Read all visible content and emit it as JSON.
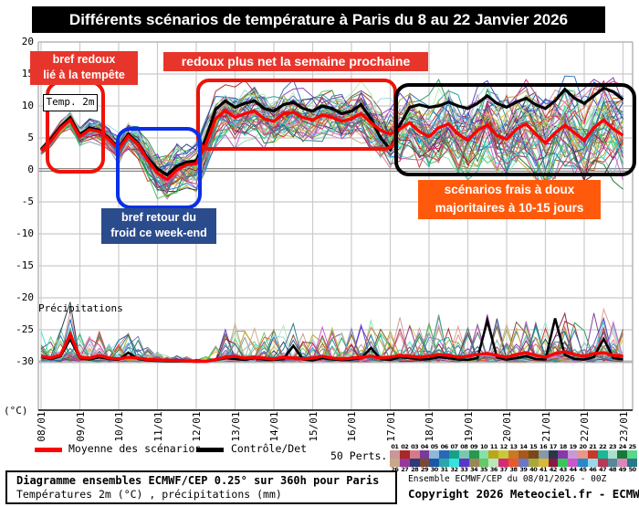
{
  "title": "Différents scénarios de température à Paris du 8 au 22 Janvier 2026",
  "annotations": {
    "storm_redoux": {
      "line1": "bref redoux",
      "line2": "lié à la tempête"
    },
    "next_week_redoux": "redoux plus net la semaine prochaine",
    "weekend_cold": {
      "line1": "bref retour du",
      "line2": "froid ce week-end"
    },
    "mild_majority": {
      "line1": "scénarios frais à doux",
      "line2": "majoritaires à 10-15 jours"
    },
    "temp_label": "Temp. 2m",
    "precip_label": "Précipitations"
  },
  "legend": {
    "mean_label": "Moyenne des scénarios",
    "control_label": "Contrôle/Det",
    "perts_label": "50 Perts.",
    "perts_count": 50
  },
  "footer": {
    "left_title": "Diagramme ensembles ECMWF/CEP 0.25° sur 360h pour Paris",
    "left_subtitle": "Températures 2m (°C) , précipitations (mm)",
    "right_line1": "Ensemble ECMWF/CEP du 08/01/2026 - 00Z",
    "right_line2": "Copyright 2026 Meteociel.fr - ECMWF"
  },
  "axis": {
    "y_unit": "(°C)",
    "y_ticks": [
      20,
      15,
      10,
      5,
      0,
      -5,
      -10,
      -15,
      -20,
      -25,
      -30
    ],
    "x_labels": [
      "08/01",
      "09/01",
      "10/01",
      "11/01",
      "12/01",
      "13/01",
      "14/01",
      "15/01",
      "16/01",
      "17/01",
      "18/01",
      "19/01",
      "20/01",
      "21/01",
      "22/01",
      "23/01"
    ]
  },
  "colors": {
    "mean": "#ff0000",
    "control": "#000000",
    "red_annotation": "#e8352b",
    "red_outline": "#ee1208",
    "blue_fill": "#2b4c8c",
    "blue_outline": "#0a2fe8",
    "orange_fill": "#ff5a0c",
    "grid": "#cbcbcb",
    "border": "#b5b5b5",
    "zero_line": "#8a8a8a",
    "baseline": "#b8b8b8",
    "palette": [
      "#c89898",
      "#a82828",
      "#d87888",
      "#7a3a98",
      "#8fb8d8",
      "#2868b8",
      "#18a088",
      "#78c8b0",
      "#289850",
      "#88e0a8",
      "#b8a818",
      "#c8c838",
      "#c87828",
      "#a85818",
      "#784818",
      "#8898a8",
      "#283848",
      "#8838a8",
      "#c898d8",
      "#e89888",
      "#c83828",
      "#18b898",
      "#a8e0d0",
      "#187838",
      "#58d888",
      "#c8a888",
      "#983898",
      "#303878",
      "#784838",
      "#1858a8",
      "#28a8a8",
      "#38e0e0",
      "#5838c8",
      "#988858",
      "#68c868",
      "#b8e8b8",
      "#d82878",
      "#e85828",
      "#6878c8",
      "#a8a838",
      "#d8b838",
      "#881848",
      "#38c858",
      "#c858c8",
      "#2888c8",
      "#98d8e8",
      "#b83858",
      "#588898",
      "#d888b8",
      "#287888"
    ]
  },
  "chart_data": {
    "type": "line",
    "title": "Différents scénarios de température à Paris du 8 au 22 Janvier 2026",
    "x_start_date": "08/01",
    "x_end_date": "23/01",
    "x_hours_step": 6,
    "x_total_hours": 360,
    "temp_ylim": [
      -30,
      20
    ],
    "grid": true,
    "series": [
      {
        "name": "Moyenne des scénarios",
        "color": "#ff0000",
        "values": [
          3.0,
          4.5,
          6.5,
          7.8,
          5.2,
          6.3,
          6.0,
          4.8,
          3.2,
          5.3,
          4.0,
          1.5,
          -0.5,
          -1.5,
          0.0,
          0.8,
          1.0,
          4.0,
          8.0,
          9.3,
          8.2,
          8.8,
          9.2,
          8.0,
          7.6,
          8.8,
          9.0,
          8.2,
          7.8,
          8.6,
          8.2,
          7.6,
          8.0,
          8.8,
          7.4,
          6.2,
          5.6,
          6.4,
          7.4,
          6.0,
          5.2,
          6.6,
          7.2,
          5.6,
          4.6,
          6.2,
          7.0,
          5.4,
          4.8,
          6.4,
          7.2,
          5.6,
          4.2,
          5.8,
          7.0,
          5.8,
          4.6,
          6.6,
          7.8,
          6.4,
          5.4
        ]
      },
      {
        "name": "Contrôle/Det",
        "color": "#000000",
        "values": [
          3.2,
          4.8,
          6.8,
          8.2,
          5.5,
          6.6,
          6.2,
          5.0,
          3.4,
          5.6,
          4.2,
          1.8,
          0.2,
          -0.8,
          0.6,
          1.2,
          1.4,
          5.0,
          9.5,
          10.8,
          9.8,
          10.4,
          10.8,
          9.6,
          9.2,
          10.2,
          10.6,
          9.6,
          9.2,
          10.0,
          9.6,
          8.8,
          9.2,
          10.2,
          8.0,
          5.0,
          3.2,
          7.0,
          9.8,
          10.2,
          9.8,
          10.0,
          10.6,
          10.0,
          9.6,
          10.4,
          11.6,
          10.4,
          9.8,
          10.6,
          11.2,
          10.2,
          9.6,
          10.8,
          12.6,
          11.2,
          10.4,
          11.6,
          12.8,
          12.2,
          11.0
        ]
      }
    ],
    "precip_series": [
      {
        "name": "Moyenne des scénarios",
        "color": "#ff0000",
        "values": [
          1.2,
          0.8,
          1.5,
          6.0,
          1.0,
          0.8,
          1.4,
          0.8,
          0.6,
          1.0,
          0.8,
          0.5,
          0.4,
          0.3,
          0.3,
          0.2,
          0.1,
          0.1,
          0.5,
          1.0,
          1.2,
          0.8,
          1.0,
          0.8,
          0.6,
          1.0,
          0.8,
          0.6,
          0.8,
          1.2,
          0.8,
          0.6,
          0.8,
          1.0,
          1.2,
          0.8,
          1.0,
          1.4,
          1.2,
          1.0,
          1.2,
          1.6,
          1.4,
          1.0,
          1.2,
          1.6,
          1.8,
          1.4,
          1.0,
          1.6,
          2.0,
          1.4,
          1.0,
          1.8,
          2.2,
          1.6,
          1.2,
          1.8,
          2.0,
          1.4,
          1.2
        ]
      },
      {
        "name": "Contrôle/Det",
        "color": "#000000",
        "values": [
          1.0,
          0.6,
          1.2,
          5.0,
          0.8,
          0.5,
          1.0,
          0.6,
          0.4,
          2.0,
          0.6,
          0.3,
          0.2,
          0.1,
          0.1,
          0.1,
          0.0,
          0.1,
          0.4,
          0.8,
          0.6,
          0.4,
          0.8,
          0.5,
          0.4,
          0.6,
          3.5,
          0.5,
          0.3,
          0.8,
          0.5,
          0.4,
          0.5,
          0.8,
          3.0,
          0.6,
          0.4,
          1.0,
          0.8,
          0.5,
          0.6,
          1.0,
          0.8,
          0.5,
          0.4,
          0.8,
          9.0,
          1.0,
          0.5,
          0.8,
          1.2,
          0.6,
          0.5,
          9.5,
          1.5,
          0.6,
          0.5,
          1.0,
          5.0,
          0.8,
          0.5
        ]
      }
    ],
    "ensemble": {
      "members": 50,
      "temp_spread": [
        0.5,
        0.7,
        0.8,
        1.0,
        1.1,
        1.2,
        1.3,
        1.4,
        1.6,
        1.8,
        2.0,
        2.4,
        2.8,
        3.2,
        3.0,
        2.8,
        3.0,
        3.2,
        3.0,
        2.8,
        3.0,
        3.0,
        3.0,
        3.0,
        3.1,
        3.1,
        3.2,
        3.2,
        3.2,
        3.2,
        3.3,
        3.3,
        3.4,
        3.5,
        3.7,
        3.9,
        4.1,
        4.3,
        4.4,
        4.5,
        4.6,
        4.7,
        4.8,
        4.9,
        5.0,
        5.1,
        5.2,
        5.2,
        5.3,
        5.3,
        5.4,
        5.4,
        5.5,
        5.5,
        5.5,
        5.5,
        5.5,
        5.5,
        5.5,
        5.5,
        5.5
      ],
      "precip_wetness": [
        0.5,
        0.4,
        0.6,
        1.0,
        0.5,
        0.4,
        0.5,
        0.4,
        0.35,
        0.45,
        0.4,
        0.25,
        0.15,
        0.1,
        0.1,
        0.08,
        0.05,
        0.1,
        0.3,
        0.5,
        0.6,
        0.5,
        0.6,
        0.5,
        0.5,
        0.6,
        0.6,
        0.5,
        0.55,
        0.6,
        0.55,
        0.5,
        0.55,
        0.65,
        0.7,
        0.6,
        0.6,
        0.7,
        0.65,
        0.6,
        0.65,
        0.75,
        0.7,
        0.6,
        0.65,
        0.75,
        0.8,
        0.7,
        0.6,
        0.75,
        0.8,
        0.7,
        0.65,
        0.8,
        0.85,
        0.7,
        0.65,
        0.8,
        0.85,
        0.7,
        0.6
      ]
    }
  }
}
